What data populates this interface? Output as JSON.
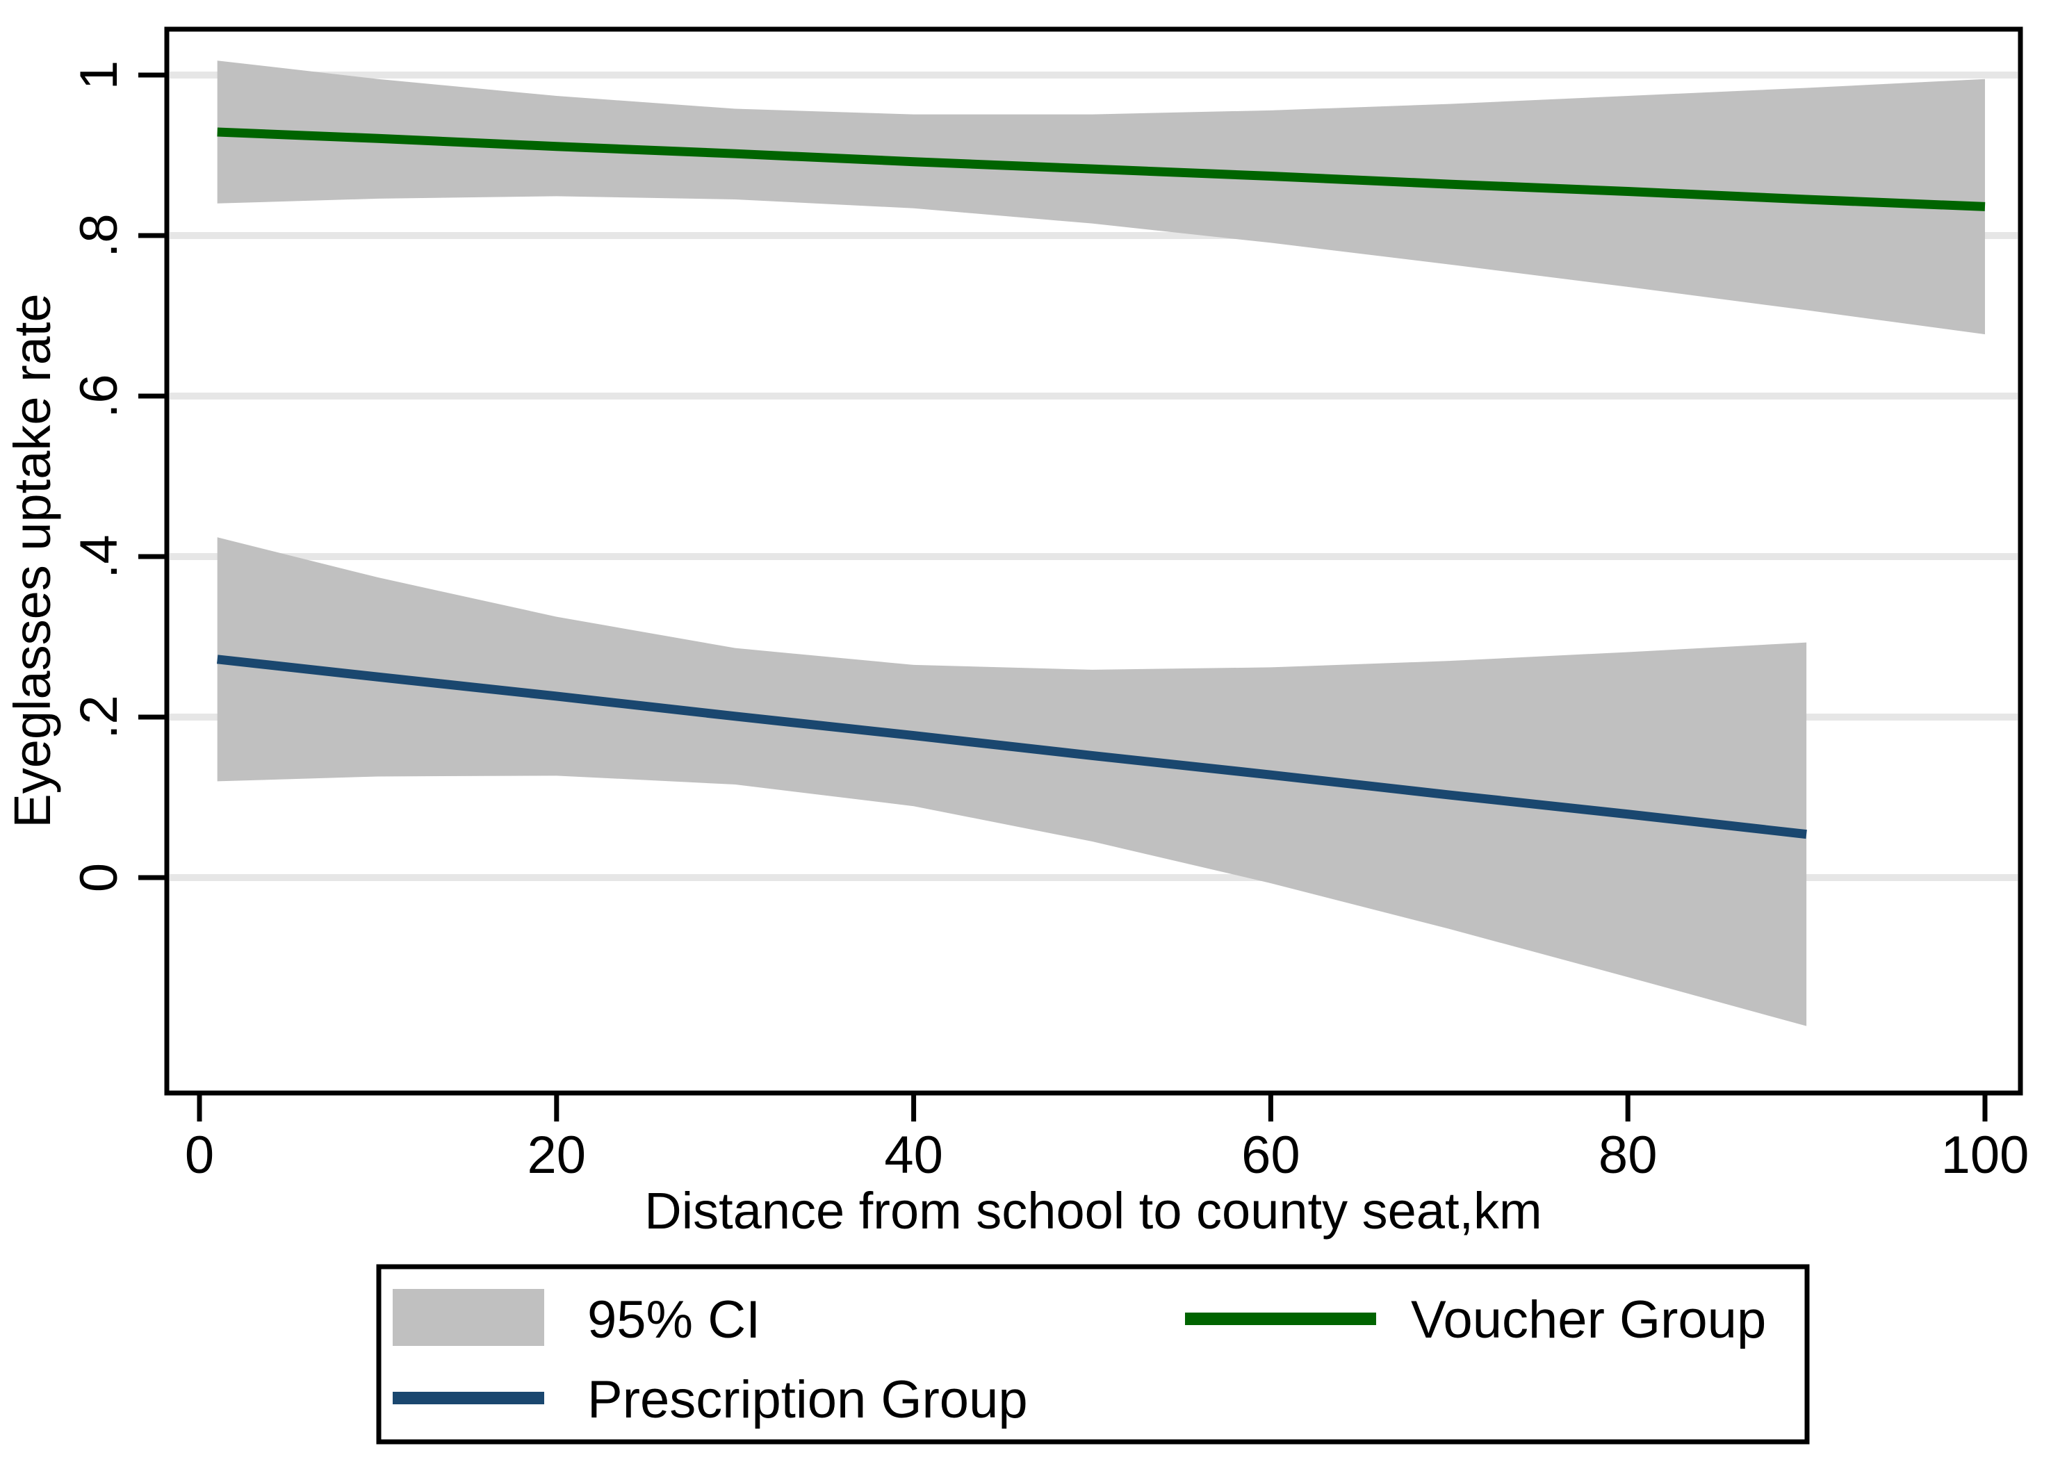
{
  "chart_data": {
    "type": "line",
    "title": "",
    "xlabel": "Distance from school to county seat,km",
    "ylabel": "Eyeglasses uptake rate",
    "x_ticks": [
      0,
      20,
      40,
      60,
      80,
      100
    ],
    "x_tick_labels": [
      "0",
      "20",
      "40",
      "60",
      "80",
      "100"
    ],
    "y_ticks": [
      0,
      0.2,
      0.4,
      0.6,
      0.8,
      1
    ],
    "y_tick_labels": [
      "0",
      ".2",
      ".4",
      ".6",
      ".8",
      "1"
    ],
    "xlim": [
      -1.8,
      102
    ],
    "ylim": [
      -0.27,
      1.057
    ],
    "grid": "horizontal-only",
    "grid_color": "#e6e6e6",
    "frame_color": "#000000",
    "background_color": "#ffffff",
    "ci_label": "95% CI",
    "ci_color": "#c0c0c0",
    "legend_position": "bottom",
    "series": [
      {
        "name": "Voucher Group",
        "color": "#006400",
        "x": [
          1,
          10,
          20,
          30,
          40,
          50,
          60,
          70,
          80,
          90,
          100
        ],
        "y": [
          0.929,
          0.921,
          0.911,
          0.902,
          0.892,
          0.883,
          0.874,
          0.864,
          0.855,
          0.845,
          0.836
        ],
        "ci_upper": [
          1.018,
          0.995,
          0.974,
          0.958,
          0.951,
          0.951,
          0.956,
          0.964,
          0.974,
          0.984,
          0.995
        ],
        "ci_lower": [
          0.84,
          0.846,
          0.849,
          0.845,
          0.834,
          0.815,
          0.791,
          0.764,
          0.736,
          0.707,
          0.677
        ]
      },
      {
        "name": "Prescription Group",
        "color": "#1a476f",
        "x": [
          1,
          10,
          20,
          30,
          40,
          50,
          60,
          70,
          80,
          90
        ],
        "y": [
          0.272,
          0.25,
          0.226,
          0.201,
          0.177,
          0.152,
          0.128,
          0.103,
          0.079,
          0.054
        ],
        "ci_upper": [
          0.424,
          0.374,
          0.325,
          0.286,
          0.265,
          0.259,
          0.262,
          0.27,
          0.281,
          0.293
        ],
        "ci_lower": [
          0.12,
          0.126,
          0.127,
          0.116,
          0.089,
          0.045,
          -0.007,
          -0.064,
          -0.124,
          -0.185
        ]
      }
    ]
  }
}
